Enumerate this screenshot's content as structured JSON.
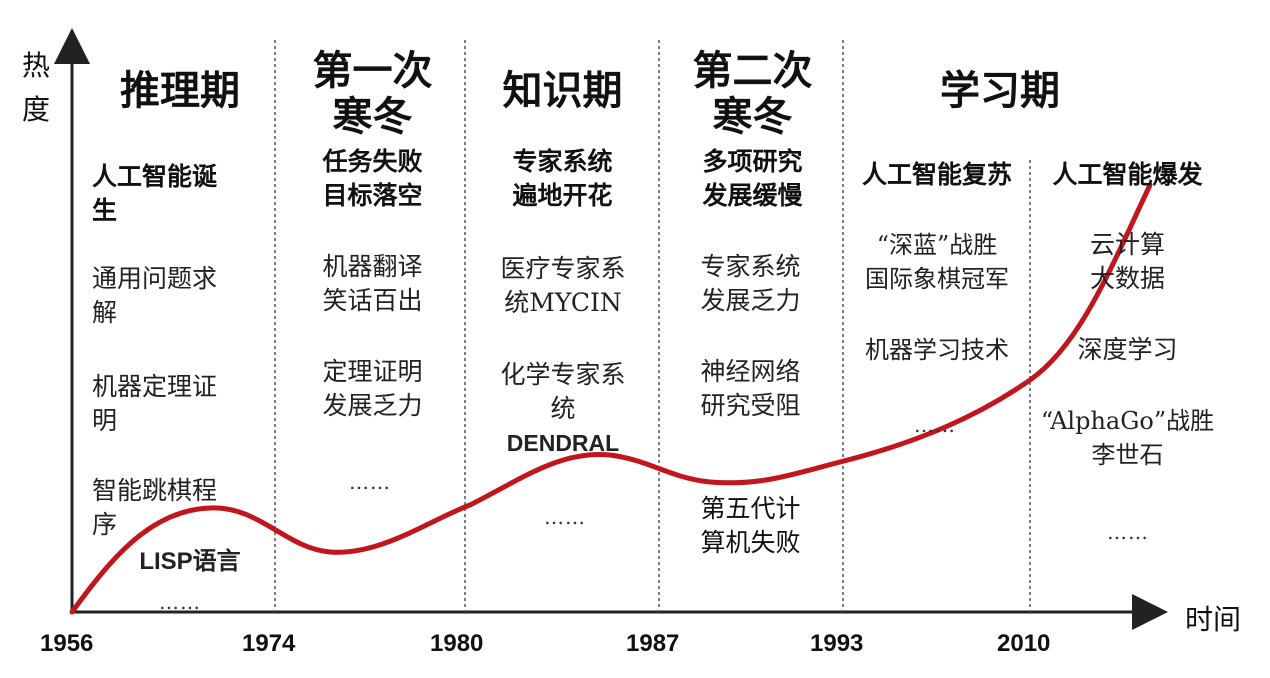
{
  "axes": {
    "y_label": "热\n度",
    "x_label": "时间"
  },
  "years": [
    "1956",
    "1974",
    "1980",
    "1987",
    "1993",
    "2010"
  ],
  "phases": {
    "p1": "推理期",
    "p2": "第一次\n寒冬",
    "p3": "知识期",
    "p4": "第二次\n寒冬",
    "p5": "学习期"
  },
  "subtitles": {
    "p1": "人工智能诞\n生",
    "p2": "任务失败\n目标落空",
    "p3": "专家系统\n遍地开花",
    "p4": "多项研究\n发展缓慢",
    "p5a": "人工智能复苏",
    "p5b": "人工智能爆发"
  },
  "items": {
    "p1_1": "通用问题求\n解",
    "p1_2": "机器定理证\n明",
    "p1_3": "智能跳棋程\n序",
    "p1_4": "LISP语言",
    "p1_dots": "……",
    "p2_1": "机器翻译\n笑话百出",
    "p2_2": "定理证明\n发展乏力",
    "p2_dots": "……",
    "p3_1": "医疗专家系\n统MYCIN",
    "p3_2": "化学专家系\n统",
    "p3_3": "DENDRAL",
    "p3_dots": "……",
    "p4_1": "专家系统\n发展乏力",
    "p4_2": "神经网络\n研究受阻",
    "p4_3": "第五代计\n算机失败",
    "p5a_1": "“深蓝”战胜\n国际象棋冠军",
    "p5a_2": "机器学习技术",
    "p5a_dots": "……",
    "p5b_1": "云计算\n大数据",
    "p5b_2": "深度学习",
    "p5b_3": "“AlphaGo”战胜\n李世石",
    "p5b_dots": "……"
  },
  "colors": {
    "curve": "#c0161c",
    "axis": "#222222",
    "divider": "#555555"
  }
}
